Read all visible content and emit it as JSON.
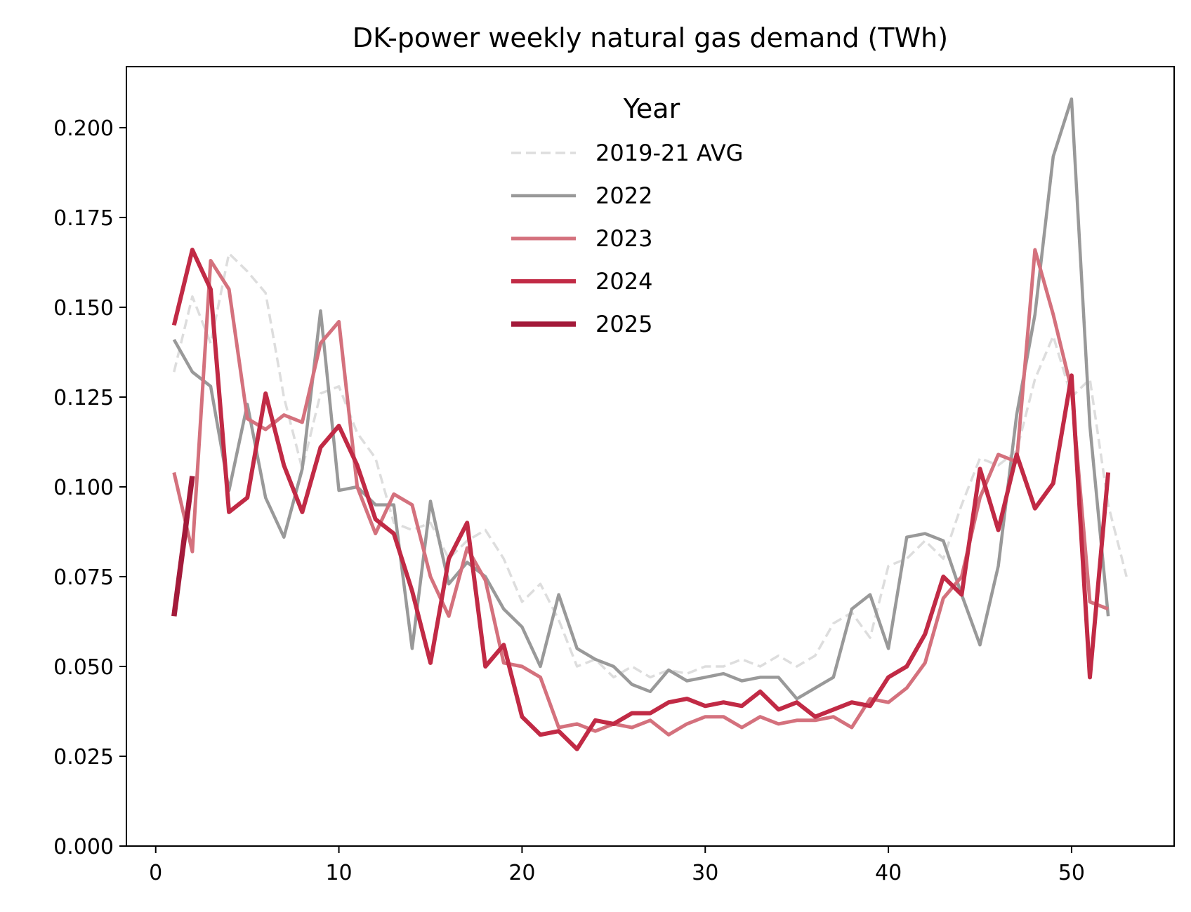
{
  "chart_data": {
    "type": "line",
    "title": "DK-power weekly natural gas demand (TWh)",
    "xlabel": "",
    "ylabel": "",
    "xlim": [
      -1.6,
      55.6
    ],
    "ylim": [
      0,
      0.217
    ],
    "xticks": [
      0,
      10,
      20,
      30,
      40,
      50
    ],
    "xtick_labels": [
      "0",
      "10",
      "20",
      "30",
      "40",
      "50"
    ],
    "yticks": [
      0,
      0.025,
      0.05,
      0.075,
      0.1,
      0.125,
      0.15,
      0.175,
      0.2
    ],
    "ytick_labels": [
      "0.000",
      "0.025",
      "0.050",
      "0.075",
      "0.100",
      "0.125",
      "0.150",
      "0.175",
      "0.200"
    ],
    "grid": false,
    "legend": {
      "title": "Year",
      "placement": "upper center"
    },
    "series": [
      {
        "name": "2019-21 AVG",
        "color": "#dddddd",
        "dash": true,
        "width": 3.5,
        "x": [
          1,
          2,
          3,
          4,
          5,
          6,
          7,
          8,
          9,
          10,
          11,
          12,
          13,
          14,
          15,
          16,
          17,
          18,
          19,
          20,
          21,
          22,
          23,
          24,
          25,
          26,
          27,
          28,
          29,
          30,
          31,
          32,
          33,
          34,
          35,
          36,
          37,
          38,
          39,
          40,
          41,
          42,
          43,
          44,
          45,
          46,
          47,
          48,
          49,
          50,
          51,
          52,
          53
        ],
        "values": [
          0.132,
          0.153,
          0.14,
          0.165,
          0.16,
          0.154,
          0.125,
          0.105,
          0.126,
          0.128,
          0.115,
          0.108,
          0.09,
          0.088,
          0.09,
          0.08,
          0.085,
          0.088,
          0.08,
          0.068,
          0.073,
          0.063,
          0.05,
          0.052,
          0.047,
          0.05,
          0.047,
          0.049,
          0.048,
          0.05,
          0.05,
          0.052,
          0.05,
          0.053,
          0.05,
          0.053,
          0.062,
          0.065,
          0.058,
          0.078,
          0.08,
          0.085,
          0.08,
          0.095,
          0.108,
          0.106,
          0.11,
          0.13,
          0.142,
          0.125,
          0.13,
          0.095,
          0.075
        ]
      },
      {
        "name": "2022",
        "color": "#999999",
        "dash": false,
        "width": 4.5,
        "x": [
          1,
          2,
          3,
          4,
          5,
          6,
          7,
          8,
          9,
          10,
          11,
          12,
          13,
          14,
          15,
          16,
          17,
          18,
          19,
          20,
          21,
          22,
          23,
          24,
          25,
          26,
          27,
          28,
          29,
          30,
          31,
          32,
          33,
          34,
          35,
          36,
          37,
          38,
          39,
          40,
          41,
          42,
          43,
          44,
          45,
          46,
          47,
          48,
          49,
          50,
          51,
          52
        ],
        "values": [
          0.141,
          0.132,
          0.128,
          0.099,
          0.123,
          0.097,
          0.086,
          0.105,
          0.149,
          0.099,
          0.1,
          0.095,
          0.095,
          0.055,
          0.096,
          0.073,
          0.079,
          0.075,
          0.066,
          0.061,
          0.05,
          0.07,
          0.055,
          0.052,
          0.05,
          0.045,
          0.043,
          0.049,
          0.046,
          0.047,
          0.048,
          0.046,
          0.047,
          0.047,
          0.041,
          0.044,
          0.047,
          0.066,
          0.07,
          0.055,
          0.086,
          0.087,
          0.085,
          0.07,
          0.056,
          0.078,
          0.12,
          0.148,
          0.192,
          0.208,
          0.117,
          0.064
        ]
      },
      {
        "name": "2023",
        "color": "#d4717d",
        "dash": false,
        "width": 5,
        "x": [
          1,
          2,
          3,
          4,
          5,
          6,
          7,
          8,
          9,
          10,
          11,
          12,
          13,
          14,
          15,
          16,
          17,
          18,
          19,
          20,
          21,
          22,
          23,
          24,
          25,
          26,
          27,
          28,
          29,
          30,
          31,
          32,
          33,
          34,
          35,
          36,
          37,
          38,
          39,
          40,
          41,
          42,
          43,
          44,
          45,
          46,
          47,
          48,
          49,
          50,
          51,
          52
        ],
        "values": [
          0.104,
          0.082,
          0.163,
          0.155,
          0.119,
          0.116,
          0.12,
          0.118,
          0.14,
          0.146,
          0.1,
          0.087,
          0.098,
          0.095,
          0.075,
          0.064,
          0.083,
          0.074,
          0.051,
          0.05,
          0.047,
          0.033,
          0.034,
          0.032,
          0.034,
          0.033,
          0.035,
          0.031,
          0.034,
          0.036,
          0.036,
          0.033,
          0.036,
          0.034,
          0.035,
          0.035,
          0.036,
          0.033,
          0.041,
          0.04,
          0.044,
          0.051,
          0.069,
          0.075,
          0.097,
          0.109,
          0.107,
          0.166,
          0.148,
          0.127,
          0.068,
          0.066
        ]
      },
      {
        "name": "2024",
        "color": "#c12a45",
        "dash": false,
        "width": 6,
        "x": [
          1,
          2,
          3,
          4,
          5,
          6,
          7,
          8,
          9,
          10,
          11,
          12,
          13,
          14,
          15,
          16,
          17,
          18,
          19,
          20,
          21,
          22,
          23,
          24,
          25,
          26,
          27,
          28,
          29,
          30,
          31,
          32,
          33,
          34,
          35,
          36,
          37,
          38,
          39,
          40,
          41,
          42,
          43,
          44,
          45,
          46,
          47,
          48,
          49,
          50,
          51,
          52
        ],
        "values": [
          0.145,
          0.166,
          0.155,
          0.093,
          0.097,
          0.126,
          0.106,
          0.093,
          0.111,
          0.117,
          0.106,
          0.091,
          0.087,
          0.071,
          0.051,
          0.08,
          0.09,
          0.05,
          0.056,
          0.036,
          0.031,
          0.032,
          0.027,
          0.035,
          0.034,
          0.037,
          0.037,
          0.04,
          0.041,
          0.039,
          0.04,
          0.039,
          0.043,
          0.038,
          0.04,
          0.036,
          0.038,
          0.04,
          0.039,
          0.047,
          0.05,
          0.059,
          0.075,
          0.07,
          0.105,
          0.088,
          0.109,
          0.094,
          0.101,
          0.131,
          0.047,
          0.104
        ]
      },
      {
        "name": "2025",
        "color": "#a31a3a",
        "dash": false,
        "width": 7.5,
        "x": [
          1,
          2
        ],
        "values": [
          0.064,
          0.103
        ]
      }
    ]
  }
}
